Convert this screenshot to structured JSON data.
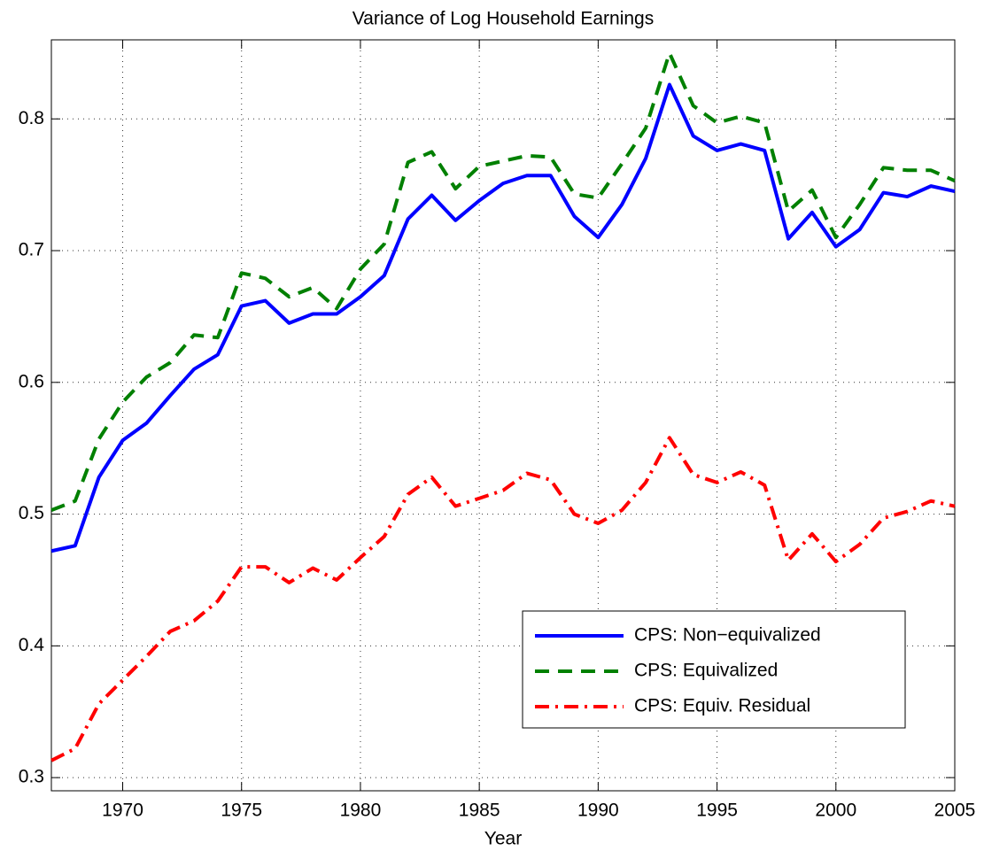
{
  "chart_data": {
    "type": "line",
    "title": "Variance of Log Household Earnings",
    "x_label": "Year",
    "x": [
      1967,
      1968,
      1969,
      1970,
      1971,
      1972,
      1973,
      1974,
      1975,
      1976,
      1977,
      1978,
      1979,
      1980,
      1981,
      1982,
      1983,
      1984,
      1985,
      1986,
      1987,
      1988,
      1989,
      1990,
      1991,
      1992,
      1993,
      1994,
      1995,
      1996,
      1997,
      1998,
      1999,
      2000,
      2001,
      2002,
      2003,
      2004,
      2005
    ],
    "series": [
      {
        "name": "CPS: Non−equivalized",
        "color": "#0000ff",
        "line_style": "solid",
        "values": [
          0.472,
          0.476,
          0.528,
          0.556,
          0.569,
          0.59,
          0.61,
          0.621,
          0.658,
          0.662,
          0.645,
          0.652,
          0.652,
          0.665,
          0.681,
          0.724,
          0.742,
          0.723,
          0.738,
          0.751,
          0.757,
          0.757,
          0.726,
          0.71,
          0.735,
          0.77,
          0.826,
          0.787,
          0.776,
          0.781,
          0.776,
          0.709,
          0.729,
          0.703,
          0.716,
          0.744,
          0.741,
          0.749,
          0.745
        ]
      },
      {
        "name": "CPS: Equivalized",
        "color": "#008000",
        "line_style": "dashed",
        "values": [
          0.503,
          0.51,
          0.557,
          0.585,
          0.604,
          0.615,
          0.636,
          0.634,
          0.683,
          0.679,
          0.665,
          0.672,
          0.656,
          0.686,
          0.705,
          0.767,
          0.775,
          0.747,
          0.764,
          0.768,
          0.772,
          0.771,
          0.743,
          0.74,
          0.766,
          0.793,
          0.85,
          0.81,
          0.797,
          0.802,
          0.797,
          0.73,
          0.746,
          0.71,
          0.735,
          0.763,
          0.761,
          0.761,
          0.753
        ]
      },
      {
        "name": "CPS: Equiv. Residual",
        "color": "#ff0000",
        "line_style": "dashdot",
        "values": [
          0.313,
          0.322,
          0.356,
          0.374,
          0.392,
          0.411,
          0.419,
          0.434,
          0.46,
          0.46,
          0.448,
          0.459,
          0.45,
          0.467,
          0.483,
          0.515,
          0.528,
          0.506,
          0.512,
          0.518,
          0.531,
          0.526,
          0.5,
          0.493,
          0.503,
          0.524,
          0.558,
          0.53,
          0.524,
          0.532,
          0.522,
          0.465,
          0.485,
          0.464,
          0.477,
          0.497,
          0.502,
          0.51,
          0.506
        ]
      }
    ],
    "xlim": [
      1967,
      2005
    ],
    "xticks": [
      1970,
      1975,
      1980,
      1985,
      1990,
      1995,
      2000,
      2005
    ],
    "ylim": [
      0.29,
      0.86
    ],
    "yticks": [
      0.3,
      0.4,
      0.5,
      0.6,
      0.7,
      0.8
    ],
    "grid": true,
    "legend_position": "lower-right"
  }
}
